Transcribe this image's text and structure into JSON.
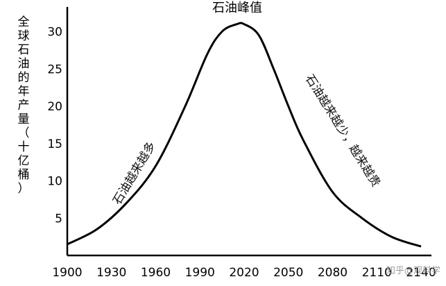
{
  "chart_data": {
    "type": "line",
    "title": "",
    "ylabel": "全球石油的年产量（十亿桶）",
    "xlabel": "",
    "x_ticks": [
      "1900",
      "1930",
      "1960",
      "1990",
      "2020",
      "2050",
      "2080",
      "2110",
      "2140"
    ],
    "y_ticks": [
      "5",
      "10",
      "15",
      "20",
      "25",
      "30"
    ],
    "xlim": [
      1900,
      2140
    ],
    "ylim": [
      0,
      32
    ],
    "series": [
      {
        "x": [
          1900,
          1920,
          1940,
          1960,
          1980,
          1995,
          2005,
          2015,
          2020,
          2030,
          2040,
          2050,
          2060,
          2080,
          2100,
          2120,
          2140
        ],
        "y": [
          1.5,
          3.5,
          7.0,
          12.0,
          20.0,
          27.0,
          30.0,
          31.0,
          31.0,
          29.5,
          25.0,
          20.0,
          15.5,
          8.5,
          5.0,
          2.5,
          1.2
        ]
      }
    ],
    "annotations": {
      "peak": "石油峰值",
      "left": "石油越来越多",
      "right": "石油越来越少，越来越贵"
    }
  },
  "watermark": "知乎@观科学"
}
